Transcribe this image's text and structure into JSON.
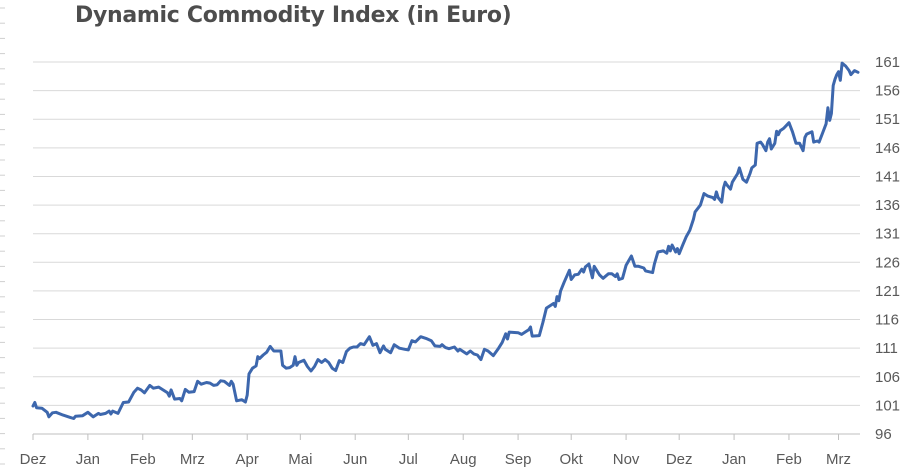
{
  "chart_data": {
    "type": "line",
    "title": "Dynamic Commodity Index (in Euro)",
    "xlabel": "",
    "ylabel": "",
    "x_unit": "days since first tick (Dez)",
    "xlim": [
      0,
      466
    ],
    "ylim": [
      96,
      161
    ],
    "yticks": [
      96,
      101,
      106,
      111,
      116,
      121,
      126,
      131,
      136,
      141,
      146,
      151,
      156,
      161
    ],
    "y_axis_side": "right",
    "grid": true,
    "legend": "none",
    "xticks": [
      {
        "label": "Dez",
        "x": 0
      },
      {
        "label": "Jan",
        "x": 31
      },
      {
        "label": "Feb",
        "x": 62
      },
      {
        "label": "Mrz",
        "x": 90
      },
      {
        "label": "Apr",
        "x": 121
      },
      {
        "label": "Mai",
        "x": 151
      },
      {
        "label": "Jun",
        "x": 182
      },
      {
        "label": "Jul",
        "x": 212
      },
      {
        "label": "Aug",
        "x": 243
      },
      {
        "label": "Sep",
        "x": 274
      },
      {
        "label": "Okt",
        "x": 304
      },
      {
        "label": "Nov",
        "x": 335
      },
      {
        "label": "Dez",
        "x": 365
      },
      {
        "label": "Jan",
        "x": 396
      },
      {
        "label": "Feb",
        "x": 427
      },
      {
        "label": "Mrz",
        "x": 455
      }
    ],
    "series": [
      {
        "name": "Dynamic Commodity Index",
        "color": "#3d67ad",
        "points": [
          [
            0,
            100.9
          ],
          [
            1,
            101.5
          ],
          [
            2,
            100.6
          ],
          [
            5,
            100.5
          ],
          [
            8,
            99.8
          ],
          [
            9,
            99
          ],
          [
            11,
            99.7
          ],
          [
            13,
            99.8
          ],
          [
            17,
            99.3
          ],
          [
            21,
            98.9
          ],
          [
            23,
            98.7
          ],
          [
            24,
            99.1
          ],
          [
            28,
            99.2
          ],
          [
            31,
            99.8
          ],
          [
            34,
            99
          ],
          [
            37,
            99.6
          ],
          [
            38,
            99.4
          ],
          [
            41,
            99.6
          ],
          [
            43,
            100
          ],
          [
            44,
            99.5
          ],
          [
            45,
            100
          ],
          [
            48,
            99.6
          ],
          [
            51,
            101.5
          ],
          [
            54,
            101.6
          ],
          [
            57,
            103.3
          ],
          [
            59,
            104
          ],
          [
            61,
            103.7
          ],
          [
            63,
            103.2
          ],
          [
            66,
            104.5
          ],
          [
            68,
            104
          ],
          [
            71,
            104.2
          ],
          [
            74,
            103.6
          ],
          [
            76,
            103.2
          ],
          [
            77,
            102.6
          ],
          [
            78,
            103.7
          ],
          [
            80,
            102.1
          ],
          [
            83,
            102.2
          ],
          [
            84,
            101.8
          ],
          [
            86,
            103.8
          ],
          [
            88,
            103.3
          ],
          [
            91,
            103.4
          ],
          [
            93,
            105.2
          ],
          [
            95,
            104.7
          ],
          [
            98,
            105
          ],
          [
            100,
            104.9
          ],
          [
            102,
            104.5
          ],
          [
            104,
            104.6
          ],
          [
            106,
            105.3
          ],
          [
            108,
            105.2
          ],
          [
            111,
            104.5
          ],
          [
            112,
            105.2
          ],
          [
            113,
            104.7
          ],
          [
            115,
            101.8
          ],
          [
            118,
            102
          ],
          [
            120,
            101.6
          ],
          [
            121,
            102.8
          ],
          [
            122,
            106.5
          ],
          [
            124,
            107.5
          ],
          [
            126,
            107.9
          ],
          [
            127,
            109.5
          ],
          [
            128,
            109.2
          ],
          [
            130,
            109.8
          ],
          [
            132,
            110.3
          ],
          [
            134,
            111.3
          ],
          [
            136,
            110.5
          ],
          [
            140,
            110.5
          ],
          [
            141,
            108
          ],
          [
            143,
            107.5
          ],
          [
            145,
            107.6
          ],
          [
            147,
            108
          ],
          [
            148,
            109.5
          ],
          [
            149,
            108
          ],
          [
            150,
            108.5
          ],
          [
            153,
            108.9
          ],
          [
            155,
            107.8
          ],
          [
            157,
            107
          ],
          [
            159,
            107.8
          ],
          [
            161,
            109
          ],
          [
            163,
            108.5
          ],
          [
            165,
            109
          ],
          [
            167,
            108.5
          ],
          [
            169,
            107.5
          ],
          [
            171,
            107.1
          ],
          [
            173,
            108.8
          ],
          [
            175,
            108.5
          ],
          [
            177,
            110.4
          ],
          [
            179,
            111
          ],
          [
            181,
            111.2
          ],
          [
            183,
            111.2
          ],
          [
            185,
            111.8
          ],
          [
            187,
            111.6
          ],
          [
            190,
            113
          ],
          [
            192,
            111.5
          ],
          [
            194,
            111.8
          ],
          [
            196,
            110.2
          ],
          [
            198,
            111.4
          ],
          [
            199,
            110.8
          ],
          [
            202,
            110.2
          ],
          [
            204,
            111.6
          ],
          [
            207,
            111
          ],
          [
            210,
            110.8
          ],
          [
            212,
            110.7
          ],
          [
            214,
            112.3
          ],
          [
            216,
            112.1
          ],
          [
            219,
            113
          ],
          [
            222,
            112.7
          ],
          [
            225,
            112.3
          ],
          [
            227,
            111.4
          ],
          [
            230,
            111.3
          ],
          [
            231,
            111.6
          ],
          [
            233,
            111.1
          ],
          [
            235,
            110.9
          ],
          [
            238,
            111.2
          ],
          [
            240,
            110.5
          ],
          [
            241,
            110.8
          ],
          [
            245,
            110
          ],
          [
            247,
            110.5
          ],
          [
            249,
            110
          ],
          [
            251,
            109.8
          ],
          [
            253,
            109
          ],
          [
            255,
            110.8
          ],
          [
            257,
            110.5
          ],
          [
            260,
            109.7
          ],
          [
            263,
            111
          ],
          [
            265,
            112
          ],
          [
            267,
            113.5
          ],
          [
            268,
            112.6
          ],
          [
            269,
            113.8
          ],
          [
            274,
            113.7
          ],
          [
            276,
            113.4
          ],
          [
            280,
            114.2
          ],
          [
            281,
            114.7
          ],
          [
            282,
            113.1
          ],
          [
            286,
            113.2
          ],
          [
            288,
            115.5
          ],
          [
            290,
            118
          ],
          [
            294,
            118.8
          ],
          [
            295,
            118.3
          ],
          [
            296,
            120
          ],
          [
            297,
            119.3
          ],
          [
            298,
            121
          ],
          [
            300,
            122.5
          ],
          [
            303,
            124.6
          ],
          [
            304,
            123
          ],
          [
            306,
            123.8
          ],
          [
            308,
            123.9
          ],
          [
            310,
            124.8
          ],
          [
            311,
            124.3
          ],
          [
            312,
            125.2
          ],
          [
            314,
            125.7
          ],
          [
            316,
            123.3
          ],
          [
            317,
            125.3
          ],
          [
            320,
            123.8
          ],
          [
            322,
            123.2
          ],
          [
            325,
            124
          ],
          [
            327,
            124
          ],
          [
            329,
            123.5
          ],
          [
            330,
            124
          ],
          [
            331,
            123
          ],
          [
            333,
            123.2
          ],
          [
            335,
            125.5
          ],
          [
            338,
            127.1
          ],
          [
            340,
            125.3
          ],
          [
            342,
            125.3
          ],
          [
            345,
            125
          ],
          [
            346,
            124.5
          ],
          [
            350,
            124.2
          ],
          [
            351,
            125.7
          ],
          [
            353,
            127.8
          ],
          [
            356,
            128
          ],
          [
            358,
            127.6
          ],
          [
            359,
            128.8
          ],
          [
            360,
            128
          ],
          [
            361,
            129
          ],
          [
            363,
            127.8
          ],
          [
            364,
            128.4
          ],
          [
            365,
            127.5
          ],
          [
            367,
            129
          ],
          [
            369,
            130.5
          ],
          [
            371,
            131.6
          ],
          [
            373,
            133.5
          ],
          [
            374,
            134.8
          ],
          [
            377,
            136
          ],
          [
            379,
            138
          ],
          [
            381,
            137.6
          ],
          [
            384,
            137.3
          ],
          [
            385,
            137
          ],
          [
            386,
            138.3
          ],
          [
            387,
            137.3
          ],
          [
            389,
            136.5
          ],
          [
            390,
            139
          ],
          [
            391,
            140
          ],
          [
            392,
            139.5
          ],
          [
            394,
            138.8
          ],
          [
            395,
            140
          ],
          [
            398,
            141.5
          ],
          [
            399,
            142.5
          ],
          [
            401,
            140.5
          ],
          [
            403,
            140
          ],
          [
            405,
            141.5
          ],
          [
            406,
            142.5
          ],
          [
            408,
            143
          ],
          [
            409,
            146.8
          ],
          [
            411,
            147
          ],
          [
            412,
            146.6
          ],
          [
            414,
            145.5
          ],
          [
            415,
            147
          ],
          [
            416,
            147.6
          ],
          [
            417,
            145.8
          ],
          [
            419,
            146.8
          ],
          [
            420,
            148.9
          ],
          [
            421,
            148.3
          ],
          [
            422,
            149
          ],
          [
            424,
            149.4
          ],
          [
            427,
            150.4
          ],
          [
            429,
            148.8
          ],
          [
            431,
            146.8
          ],
          [
            433,
            146.8
          ],
          [
            435,
            145.5
          ],
          [
            436,
            147.8
          ],
          [
            437,
            148.4
          ],
          [
            440,
            148.8
          ],
          [
            441,
            147
          ],
          [
            443,
            147.2
          ],
          [
            444,
            147
          ],
          [
            446,
            148.6
          ],
          [
            448,
            150.2
          ],
          [
            449,
            153
          ],
          [
            450,
            150.8
          ],
          [
            451,
            152
          ],
          [
            452,
            156.9
          ],
          [
            453,
            158
          ],
          [
            454,
            158.8
          ],
          [
            455,
            159.3
          ],
          [
            456,
            157.8
          ],
          [
            457,
            160.8
          ],
          [
            459,
            160.3
          ],
          [
            461,
            159.5
          ],
          [
            462,
            158.8
          ],
          [
            464,
            159.5
          ],
          [
            466,
            159.2
          ]
        ]
      }
    ]
  }
}
